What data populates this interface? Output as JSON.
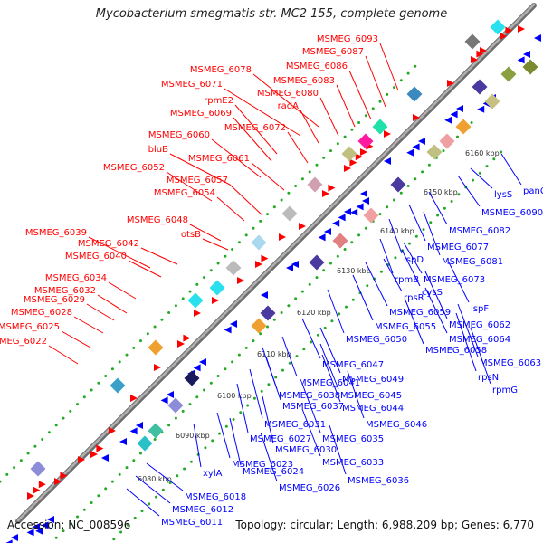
{
  "title": "Mycobacterium smegmatis str. MC2 155, complete genome",
  "footer": {
    "accession": "Accession: NC_008596",
    "summary": "Topology: circular; Length: 6,988,209 bp; Genes: 6,770"
  },
  "colors": {
    "backbone": "#8c8c8c",
    "forward_strand_genes": "#ff0000",
    "reverse_strand_genes": "#0000ff",
    "forward_labels": "#ff0000",
    "reverse_labels": "#0000ff",
    "dots": "#22aa22"
  },
  "scale_ticks": [
    "6080 kbp",
    "6090 kbp",
    "6100 kbp",
    "6110 kbp",
    "6120 kbp",
    "6130 kbp",
    "6140 kbp",
    "6150 kbp",
    "6160 kbp"
  ],
  "forward_labels": [
    "MSMEG_6093",
    "MSMEG_6087",
    "MSMEG_6086",
    "MSMEG_6083",
    "MSMEG_6078",
    "MSMEG_6080",
    "MSMEG_6071",
    "radA",
    "rpmE2",
    "MSMEG_6069",
    "MSMEG_6072",
    "MSMEG_6060",
    "bluB",
    "MSMEG_6061",
    "MSMEG_6052",
    "MSMEG_6057",
    "MSMEG_6054",
    "MSMEG_6048",
    "otsB",
    "MSMEG_6039",
    "MSMEG_6042",
    "MSMEG_6040",
    "MSMEG_6034",
    "MSMEG_6032",
    "MSMEG_6029",
    "MSMEG_6028",
    "MSMEG_6025",
    "MSMEG_6022"
  ],
  "reverse_labels": [
    "panC",
    "lysS",
    "MSMEG_6090",
    "MSMEG_6082",
    "MSMEG_6077",
    "ispD",
    "MSMEG_6081",
    "rpmB",
    "MSMEG_6073",
    "cysS",
    "rpsR",
    "ispF",
    "MSMEG_6059",
    "MSMEG_6055",
    "MSMEG_6062",
    "MSMEG_6050",
    "MSMEG_6064",
    "MSMEG_6058",
    "MSMEG_6063",
    "rpsN",
    "rpmG",
    "MSMEG_6047",
    "MSMEG_6049",
    "MSMEG_6041",
    "MSMEG_6045",
    "MSMEG_6038",
    "MSMEG_6044",
    "MSMEG_6037",
    "MSMEG_6046",
    "MSMEG_6031",
    "MSMEG_6035",
    "MSMEG_6027",
    "MSMEG_6030",
    "MSMEG_6023",
    "MSMEG_6033",
    "MSMEG_6024",
    "MSMEG_6036",
    "xylA",
    "MSMEG_6026",
    "MSMEG_6018",
    "MSMEG_6012",
    "MSMEG_6011"
  ]
}
